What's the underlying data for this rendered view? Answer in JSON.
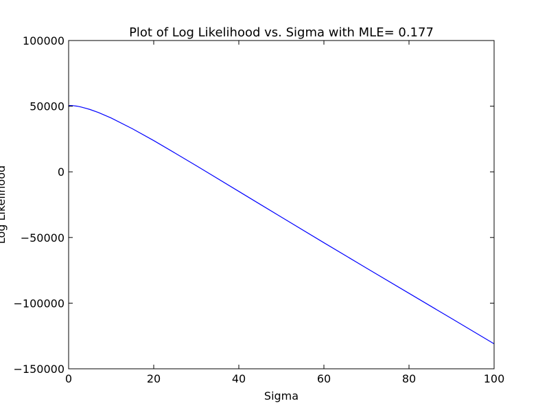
{
  "chart_data": {
    "type": "line",
    "title": "Plot of Log Likelihood vs. Sigma with MLE= 0.177",
    "xlabel": "Sigma",
    "ylabel": "Log Likelihood",
    "xlim": [
      0,
      100
    ],
    "ylim": [
      -150000,
      100000
    ],
    "x_ticks": [
      0,
      20,
      40,
      60,
      80,
      100
    ],
    "y_ticks": [
      -150000,
      -100000,
      -50000,
      0,
      50000,
      100000
    ],
    "x_tick_labels": [
      "0",
      "20",
      "40",
      "60",
      "80",
      "100"
    ],
    "y_tick_labels": [
      "−150000",
      "−100000",
      "−50000",
      "0",
      "50000",
      "100000"
    ],
    "grid": false,
    "series": [
      {
        "name": "Log Likelihood",
        "color": "#0000ff",
        "x": [
          0,
          0.177,
          1,
          2,
          3,
          5,
          7,
          10,
          15,
          20,
          25,
          30,
          40,
          50,
          60,
          70,
          80,
          90,
          100
        ],
        "y": [
          49500,
          50500,
          50400,
          50000,
          49300,
          47500,
          45200,
          41000,
          32800,
          23800,
          14300,
          4700,
          -14900,
          -34500,
          -54000,
          -73300,
          -92500,
          -111700,
          -131000
        ]
      }
    ]
  }
}
